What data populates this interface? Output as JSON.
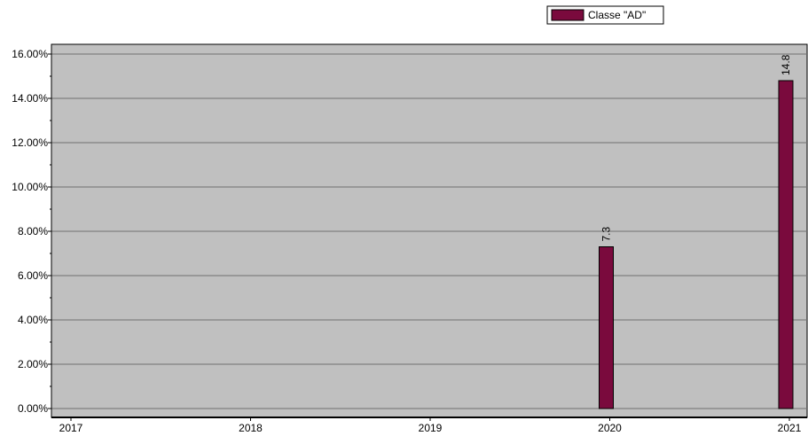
{
  "chart_data": {
    "type": "bar",
    "categories": [
      "2017",
      "2018",
      "2019",
      "2020",
      "2021"
    ],
    "series": [
      {
        "name": "Classe \"AD\"",
        "values": [
          null,
          null,
          null,
          7.3,
          14.8
        ],
        "data_labels": [
          "",
          "",
          "",
          "7.3",
          "14.8"
        ],
        "color": "#7a0a3d"
      }
    ],
    "y_ticks": [
      0,
      2,
      4,
      6,
      8,
      10,
      12,
      14,
      16
    ],
    "y_tick_labels": [
      "0.00%",
      "2.00%",
      "4.00%",
      "6.00%",
      "8.00%",
      "10.00%",
      "12.00%",
      "14.00%",
      "16.00%"
    ],
    "ylim": [
      0,
      16
    ],
    "xlabel": "",
    "ylabel": "",
    "grid": true,
    "legend": {
      "position": "top-right",
      "entries": [
        "Classe \"AD\""
      ]
    },
    "colors": {
      "plot_background": "#c0c0c0",
      "bar_fill": "#7a0a3d",
      "gridline": "#707070",
      "axis": "#000000"
    }
  }
}
